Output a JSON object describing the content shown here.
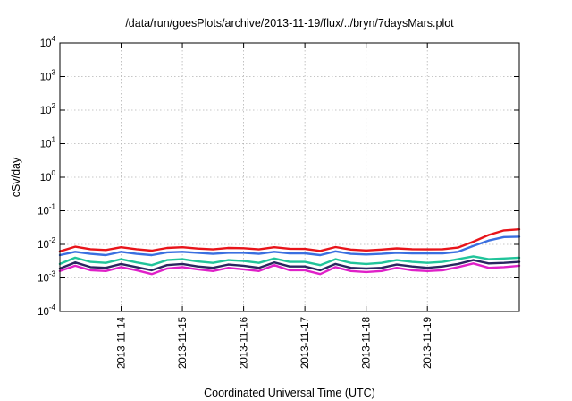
{
  "chart_data": {
    "type": "line",
    "title": "/data/run/goesPlots/archive/2013-11-19/flux/../bryn/7daysMars.plot",
    "xlabel": "Coordinated Universal Time (UTC)",
    "ylabel": "cSv/day",
    "xlim": [
      "2013-11-13 00:00",
      "2013-11-20 12:00"
    ],
    "y_scale": "log",
    "ylim": [
      0.0001,
      10000
    ],
    "grid": true,
    "x_tick_labels": [
      "2013-11-14",
      "2013-11-15",
      "2013-11-16",
      "2013-11-17",
      "2013-11-18",
      "2013-11-19"
    ],
    "y_ticks": [
      {
        "base": "10",
        "exp": "4"
      },
      {
        "base": "10",
        "exp": "3"
      },
      {
        "base": "10",
        "exp": "2"
      },
      {
        "base": "10",
        "exp": "1"
      },
      {
        "base": "10",
        "exp": "0"
      },
      {
        "base": "10",
        "exp": "-1"
      },
      {
        "base": "10",
        "exp": "-2"
      },
      {
        "base": "10",
        "exp": "-3"
      },
      {
        "base": "10",
        "exp": "-4"
      }
    ],
    "x": [
      "2013-11-13 00:00",
      "2013-11-13 06:00",
      "2013-11-13 12:00",
      "2013-11-13 18:00",
      "2013-11-14 00:00",
      "2013-11-14 06:00",
      "2013-11-14 12:00",
      "2013-11-14 18:00",
      "2013-11-15 00:00",
      "2013-11-15 06:00",
      "2013-11-15 12:00",
      "2013-11-15 18:00",
      "2013-11-16 00:00",
      "2013-11-16 06:00",
      "2013-11-16 12:00",
      "2013-11-16 18:00",
      "2013-11-17 00:00",
      "2013-11-17 06:00",
      "2013-11-17 12:00",
      "2013-11-17 18:00",
      "2013-11-18 00:00",
      "2013-11-18 06:00",
      "2013-11-18 12:00",
      "2013-11-18 18:00",
      "2013-11-19 00:00",
      "2013-11-19 06:00",
      "2013-11-19 12:00",
      "2013-11-19 18:00",
      "2013-11-20 00:00",
      "2013-11-20 06:00",
      "2013-11-20 12:00"
    ],
    "series": [
      {
        "color": "#e8141a",
        "values": [
          0.0062,
          0.0085,
          0.0072,
          0.0068,
          0.0082,
          0.0072,
          0.0065,
          0.0078,
          0.0082,
          0.0075,
          0.0071,
          0.0078,
          0.0077,
          0.0071,
          0.0082,
          0.0074,
          0.0073,
          0.0064,
          0.0083,
          0.007,
          0.0066,
          0.007,
          0.0076,
          0.0072,
          0.0071,
          0.0072,
          0.008,
          0.012,
          0.019,
          0.026,
          0.028
        ]
      },
      {
        "color": "#3a6fe0",
        "values": [
          0.0048,
          0.006,
          0.0052,
          0.0048,
          0.006,
          0.0052,
          0.0048,
          0.0058,
          0.006,
          0.0056,
          0.0052,
          0.0056,
          0.0056,
          0.0052,
          0.006,
          0.0054,
          0.0054,
          0.0048,
          0.0062,
          0.0052,
          0.005,
          0.0052,
          0.0056,
          0.0054,
          0.0054,
          0.0054,
          0.006,
          0.009,
          0.013,
          0.0165,
          0.017
        ]
      },
      {
        "color": "#20c49a",
        "values": [
          0.0026,
          0.004,
          0.003,
          0.0028,
          0.0036,
          0.0029,
          0.0024,
          0.0034,
          0.0036,
          0.0031,
          0.0028,
          0.0034,
          0.0032,
          0.0028,
          0.0038,
          0.003,
          0.003,
          0.0024,
          0.0036,
          0.0028,
          0.0026,
          0.0028,
          0.0034,
          0.003,
          0.0028,
          0.003,
          0.0036,
          0.0044,
          0.0036,
          0.0038,
          0.004
        ]
      },
      {
        "color": "#2a2660",
        "values": [
          0.0019,
          0.0029,
          0.0021,
          0.002,
          0.0026,
          0.0021,
          0.0017,
          0.0024,
          0.0026,
          0.0022,
          0.002,
          0.0025,
          0.0023,
          0.002,
          0.0029,
          0.0022,
          0.0022,
          0.0017,
          0.0026,
          0.002,
          0.0019,
          0.002,
          0.0025,
          0.0022,
          0.002,
          0.0022,
          0.0026,
          0.0034,
          0.0027,
          0.0028,
          0.003
        ]
      },
      {
        "color": "#e020c8",
        "values": [
          0.0016,
          0.0023,
          0.0017,
          0.0016,
          0.0021,
          0.0017,
          0.0013,
          0.0019,
          0.0021,
          0.0018,
          0.0016,
          0.002,
          0.0018,
          0.0016,
          0.0024,
          0.0017,
          0.0017,
          0.0013,
          0.0021,
          0.0016,
          0.0015,
          0.0016,
          0.002,
          0.0017,
          0.0016,
          0.0017,
          0.0021,
          0.0027,
          0.002,
          0.0021,
          0.0023
        ]
      }
    ]
  }
}
